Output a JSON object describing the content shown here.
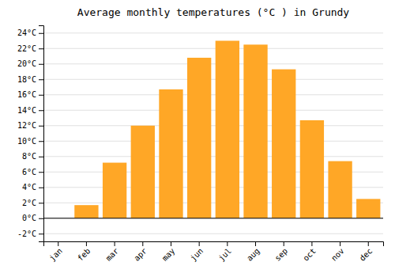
{
  "chart_data": {
    "type": "bar",
    "title": "Average monthly temperatures (°C ) in Grundy",
    "categories": [
      "jan",
      "feb",
      "mar",
      "apr",
      "may",
      "jun",
      "jul",
      "aug",
      "sep",
      "oct",
      "nov",
      "dec"
    ],
    "values": [
      0,
      1.7,
      7.2,
      12.0,
      16.7,
      20.8,
      23.0,
      22.5,
      19.3,
      12.7,
      7.4,
      2.5
    ],
    "color": "#FFA726",
    "ylim": [
      -3,
      25
    ],
    "yticks": [
      {
        "value": -2,
        "label": "-2°C"
      },
      {
        "value": 0,
        "label": "0°C"
      },
      {
        "value": 2,
        "label": "2°C"
      },
      {
        "value": 4,
        "label": "4°C"
      },
      {
        "value": 6,
        "label": "6°C"
      },
      {
        "value": 8,
        "label": "8°C"
      },
      {
        "value": 10,
        "label": "10°C"
      },
      {
        "value": 12,
        "label": "12°C"
      },
      {
        "value": 14,
        "label": "14°C"
      },
      {
        "value": 16,
        "label": "16°C"
      },
      {
        "value": 18,
        "label": "18°C"
      },
      {
        "value": 20,
        "label": "20°C"
      },
      {
        "value": 22,
        "label": "22°C"
      },
      {
        "value": 24,
        "label": "24°C"
      }
    ],
    "grid": true
  }
}
